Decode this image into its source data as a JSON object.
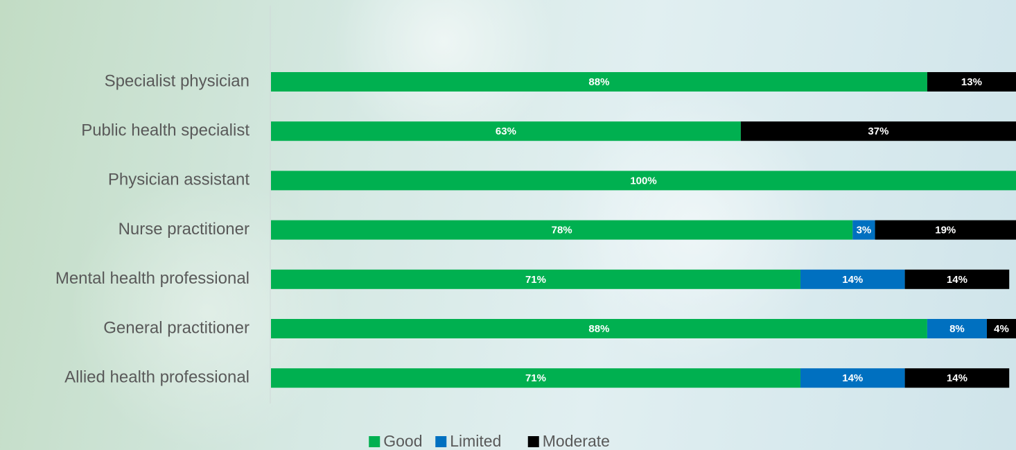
{
  "chart_data": {
    "type": "stacked-bar-horizontal",
    "categories": [
      "Specialist physician",
      "Public health specialist",
      "Physician assistant",
      "Nurse practitioner",
      "Mental health professional",
      "General practitioner",
      "Allied health professional"
    ],
    "series": [
      {
        "name": "Good",
        "color": "#00b050",
        "values": [
          88,
          63,
          100,
          78,
          71,
          88,
          71
        ],
        "value_labels": [
          "88%",
          "63%",
          "100%",
          "78%",
          "71%",
          "88%",
          "71%"
        ]
      },
      {
        "name": "Limited",
        "color": "#0070c0",
        "values": [
          null,
          null,
          null,
          3,
          14,
          8,
          14
        ],
        "value_labels": [
          null,
          null,
          null,
          "3%",
          "14%",
          "8%",
          "14%"
        ]
      },
      {
        "name": "Moderate",
        "color": "#000000",
        "values": [
          13,
          37,
          null,
          19,
          14,
          4,
          14
        ],
        "value_labels": [
          "13%",
          "37%",
          null,
          "19%",
          "14%",
          "4%",
          "14%"
        ]
      }
    ],
    "xlim": [
      0,
      100
    ],
    "legend": "bottom"
  }
}
